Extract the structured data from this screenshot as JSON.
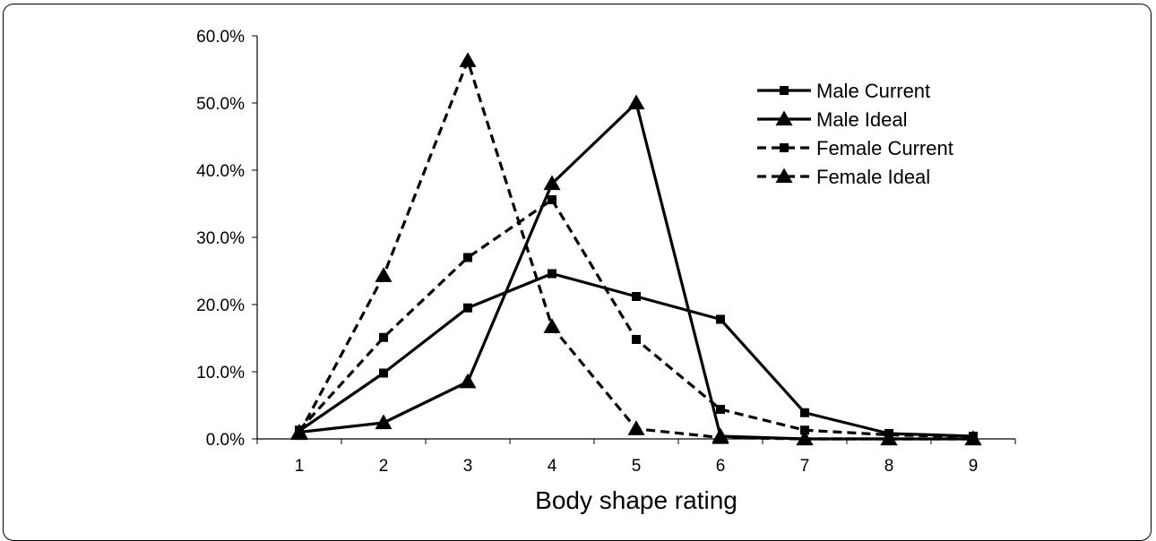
{
  "chart_data": {
    "type": "line",
    "title": "",
    "xlabel": "Body shape rating",
    "ylabel": "",
    "x": [
      1,
      2,
      3,
      4,
      5,
      6,
      7,
      8,
      9
    ],
    "x_tick_labels": [
      "1",
      "2",
      "3",
      "4",
      "5",
      "6",
      "7",
      "8",
      "9"
    ],
    "ylim": [
      0,
      60
    ],
    "y_tick_labels": [
      "0.0%",
      "10.0%",
      "20.0%",
      "30.0%",
      "40.0%",
      "50.0%",
      "60.0%"
    ],
    "y_unit": "%",
    "grid": false,
    "legend_position": "top-right",
    "series": [
      {
        "name": "Male Current",
        "values": [
          1.2,
          9.8,
          19.5,
          24.6,
          21.2,
          17.8,
          3.9,
          0.8,
          0.4
        ],
        "line": "solid",
        "marker": "square",
        "color": "#000000"
      },
      {
        "name": "Male Ideal",
        "values": [
          1.0,
          2.4,
          8.5,
          38.0,
          50.0,
          0.4,
          0.0,
          0.0,
          0.0
        ],
        "line": "solid",
        "marker": "triangle",
        "color": "#000000"
      },
      {
        "name": "Female Current",
        "values": [
          1.3,
          15.1,
          27.0,
          35.6,
          14.8,
          4.4,
          1.3,
          0.6,
          0.3
        ],
        "line": "dashed",
        "marker": "square",
        "color": "#000000"
      },
      {
        "name": "Female Ideal",
        "values": [
          0.8,
          24.3,
          56.3,
          16.7,
          1.5,
          0.2,
          0.0,
          0.0,
          0.0
        ],
        "line": "dashed",
        "marker": "triangle",
        "color": "#000000"
      }
    ]
  }
}
